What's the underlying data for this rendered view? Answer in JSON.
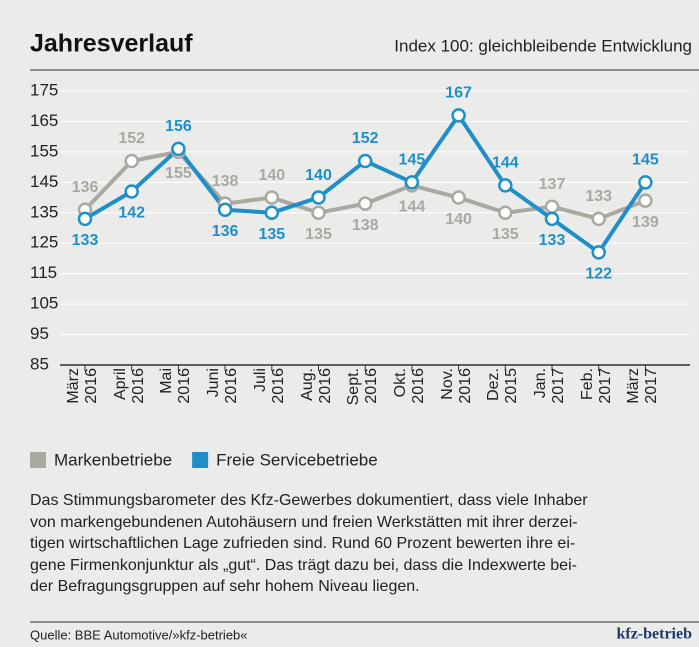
{
  "chart_data": {
    "type": "line",
    "title": "Jahresverlauf",
    "subtitle": "Index 100: gleichbleibende Entwicklung",
    "categories": [
      "März\n2016",
      "April\n2016",
      "Mai\n2016",
      "Juni\n2016",
      "Juli\n2016",
      "Aug.\n2016",
      "Sept.\n2016",
      "Okt.\n2016",
      "Nov.\n2016",
      "Dez.\n2015",
      "Jan.\n2017",
      "Feb.\n2017",
      "März\n2017"
    ],
    "series": [
      {
        "name": "Markenbetriebe",
        "color": "#a9a9a1",
        "values": [
          136,
          152,
          155,
          138,
          140,
          135,
          138,
          144,
          140,
          135,
          137,
          133,
          139
        ]
      },
      {
        "name": "Freie Servicebetriebe",
        "color": "#1f8fc9",
        "values": [
          133,
          142,
          156,
          136,
          135,
          140,
          152,
          145,
          167,
          144,
          133,
          122,
          145
        ]
      }
    ],
    "ylim": [
      85,
      175
    ],
    "yticks": [
      85,
      95,
      105,
      115,
      125,
      135,
      145,
      155,
      165,
      175
    ],
    "grid": true,
    "body": [
      "Das Stimmungsbarometer des Kfz-Gewerbes dokumentiert, dass viele Inhaber",
      "von markengebundenen Autohäusern und freien Werkstätten mit ihrer derzei-",
      "tigen wirtschaftlichen Lage zufrieden sind. Rund 60 Prozent bewerten ihre ei-",
      "gene Firmenkonjunktur als „gut“. Das trägt dazu bei, dass die Indexwerte bei-",
      "der Befragungsgruppen auf sehr hohem Niveau liegen."
    ],
    "source": "Quelle: BBE Automotive/»kfz-betrieb«",
    "logo": "kfz-betrieb"
  }
}
